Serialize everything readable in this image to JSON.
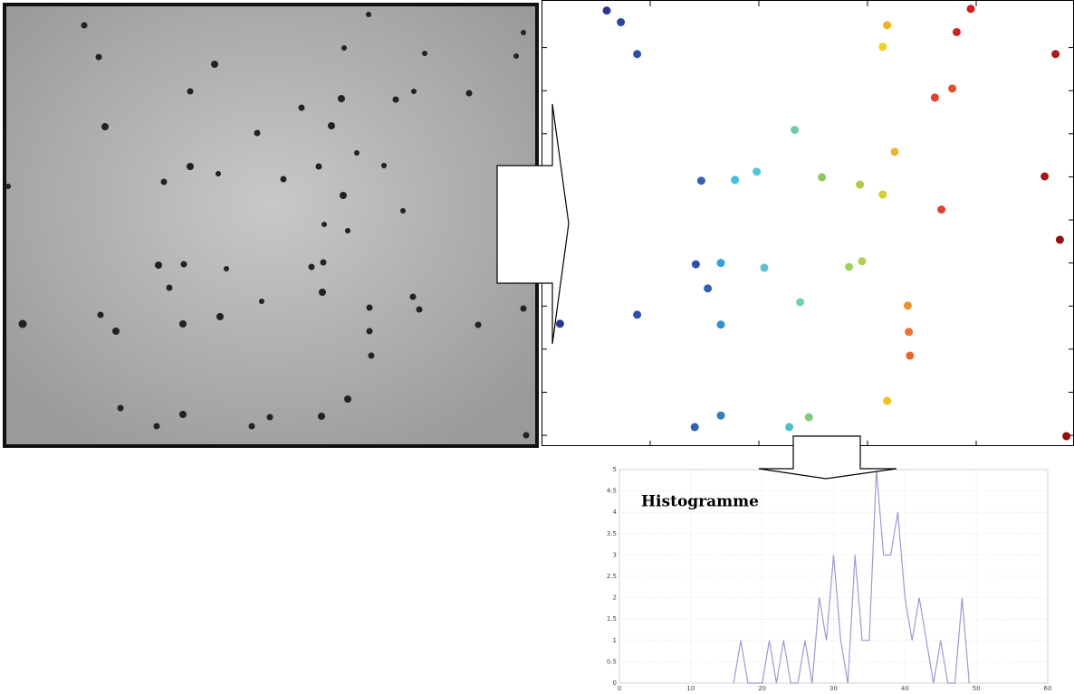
{
  "chart_data": [
    {
      "type": "scatter",
      "x": [
        0.6,
        0.73,
        0.88,
        1.47,
        1.78,
        1.98,
        2.33,
        2.58,
        2.93,
        3.14,
        3.25,
        3.14,
        3.18,
        3.62,
        3.78,
        3.82,
        3.95,
        4.73,
        4.63,
        4.77,
        3.68,
        1.42,
        1.65,
        2.05,
        1.53,
        2.38,
        2.83,
        2.95,
        3.37,
        3.38,
        3.39,
        3.18,
        0.88,
        0.17,
        1.65,
        1.41,
        1.65,
        2.28,
        2.46,
        4.83
      ],
      "values": [
        9.86,
        9.59,
        8.85,
        5.91,
        5.93,
        6.12,
        7.09,
        5.99,
        5.82,
        5.59,
        6.58,
        9.02,
        9.52,
        7.84,
        8.05,
        9.36,
        9.9,
        8.85,
        6.01,
        4.54,
        5.24,
        3.97,
        4.0,
        3.89,
        3.41,
        3.09,
        3.91,
        4.04,
        3.01,
        2.4,
        1.85,
        0.8,
        2.8,
        2.59,
        2.57,
        0.19,
        0.46,
        0.19,
        0.42,
        -0.02
      ],
      "colors": [
        "#2b3a8f",
        "#2b4a9f",
        "#3050a8",
        "#3560b0",
        "#40c0e0",
        "#50c8d8",
        "#70c8b0",
        "#90c860",
        "#b0c850",
        "#d0d030",
        "#f0b030",
        "#f0d020",
        "#f0b020",
        "#e04030",
        "#e05030",
        "#d02020",
        "#d02020",
        "#b01818",
        "#a01818",
        "#901010",
        "#e04030",
        "#3050a8",
        "#30a0e0",
        "#60c0d0",
        "#3060b0",
        "#70d0b0",
        "#a0d060",
        "#b0d050",
        "#f09030",
        "#f07030",
        "#f06030",
        "#f0c020",
        "#3050a8",
        "#283890",
        "#3090d0",
        "#3060b0",
        "#3080c0",
        "#50c0c0",
        "#80c880",
        "#901010"
      ],
      "xlim": [
        0,
        4.9
      ],
      "ylim": [
        -0.25,
        10
      ],
      "xticks": [
        1,
        2,
        3,
        4
      ],
      "yticks": [
        0,
        1,
        2,
        3,
        4,
        5,
        6,
        7,
        8,
        9
      ]
    },
    {
      "type": "line",
      "title": "Histogramme",
      "x": [
        16,
        17,
        18,
        19,
        20,
        21,
        22,
        23,
        24,
        25,
        26,
        27,
        28,
        29,
        30,
        31,
        32,
        33,
        34,
        35,
        36,
        37,
        38,
        39,
        40,
        41,
        42,
        43,
        44,
        45,
        46,
        47,
        48,
        49
      ],
      "values": [
        0,
        1,
        0,
        0,
        0,
        1,
        0,
        1,
        0,
        0,
        1,
        0,
        2,
        1,
        3,
        1,
        0,
        3,
        1,
        1,
        5,
        3,
        3,
        4,
        2,
        1,
        2,
        1,
        0,
        1,
        0,
        0,
        2,
        0
      ],
      "color": "#9b9bd0",
      "xlim": [
        0,
        60
      ],
      "ylim": [
        0,
        5
      ],
      "xticks": [
        0,
        10,
        20,
        30,
        40,
        50,
        60
      ],
      "yticks": [
        0,
        0.5,
        1,
        1.5,
        2,
        2.5,
        3,
        3.5,
        4,
        4.5,
        5
      ],
      "grid": true
    }
  ]
}
